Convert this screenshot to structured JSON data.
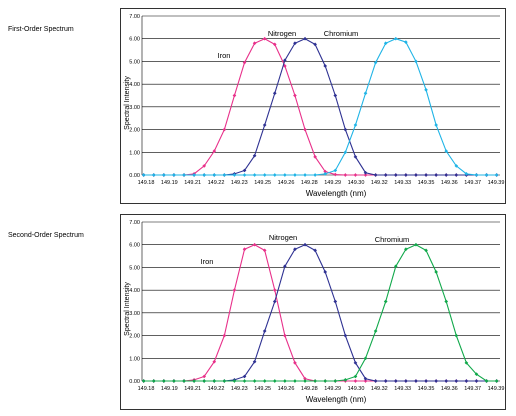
{
  "colors": {
    "iron": "#e8308a",
    "nitrogen": "#2e3192",
    "chromium_first": "#1fb4e6",
    "chromium_second": "#10a84a",
    "grid": "#000000"
  },
  "x_ticks": [
    "149.18",
    "149.19",
    "149.21",
    "149.22",
    "149.23",
    "149.25",
    "149.26",
    "149.28",
    "149.29",
    "149.30",
    "149.32",
    "149.33",
    "149.35",
    "149.36",
    "149.37",
    "149.39"
  ],
  "y_ticks": [
    "0.00",
    "1.00",
    "2.00",
    "3.00",
    "4.00",
    "5.00",
    "6.00",
    "7.00"
  ],
  "chart_data": [
    {
      "type": "line",
      "panel_label": "First-Order Spectrum",
      "xlabel": "Wavelength (nm)",
      "ylabel": "Spectral Intensity",
      "ylim": [
        0,
        7
      ],
      "grid": true,
      "annotations": [
        "Iron",
        "Nitrogen",
        "Chromium"
      ],
      "x": [
        149.181,
        149.187,
        149.193,
        149.199,
        149.205,
        149.211,
        149.217,
        149.223,
        149.229,
        149.235,
        149.241,
        149.247,
        149.253,
        149.259,
        149.265,
        149.271,
        149.277,
        149.283,
        149.289,
        149.295,
        149.301,
        149.307,
        149.313,
        149.319,
        149.325,
        149.331,
        149.337,
        149.343,
        149.349,
        149.355,
        149.361,
        149.367,
        149.373,
        149.379,
        149.385,
        149.391
      ],
      "series": [
        {
          "name": "Iron",
          "color": "iron",
          "values": [
            0,
            0,
            0,
            0,
            0,
            0.05,
            0.4,
            1.05,
            2.0,
            3.5,
            4.95,
            5.8,
            6.0,
            5.75,
            4.8,
            3.5,
            2.0,
            0.8,
            0.15,
            0.02,
            0,
            0,
            0,
            0,
            0,
            0,
            0,
            0,
            0,
            0,
            0,
            0,
            0,
            0,
            0,
            0
          ]
        },
        {
          "name": "Nitrogen",
          "color": "nitrogen",
          "values": [
            0,
            0,
            0,
            0,
            0,
            0,
            0,
            0,
            0,
            0.05,
            0.2,
            0.85,
            2.2,
            3.6,
            5.05,
            5.8,
            6.0,
            5.75,
            4.8,
            3.5,
            2.0,
            0.8,
            0.1,
            0,
            0,
            0,
            0,
            0,
            0,
            0,
            0,
            0,
            0,
            0,
            0,
            0
          ]
        },
        {
          "name": "Chromium",
          "color": "chromium_first",
          "values": [
            0,
            0,
            0,
            0,
            0,
            0,
            0,
            0,
            0,
            0,
            0,
            0,
            0,
            0,
            0,
            0,
            0,
            0,
            0.05,
            0.2,
            1.0,
            2.2,
            3.6,
            4.95,
            5.8,
            6.0,
            5.85,
            5.0,
            3.75,
            2.2,
            1.05,
            0.4,
            0.05,
            0,
            0,
            0
          ]
        }
      ]
    },
    {
      "type": "line",
      "panel_label": "Second-Order Spectrum",
      "xlabel": "Wavelength (nm)",
      "ylabel": "Spectral Intensity",
      "ylim": [
        0,
        7
      ],
      "grid": true,
      "annotations": [
        "Iron",
        "Nitrogen",
        "Chromium"
      ],
      "x": [
        149.181,
        149.187,
        149.193,
        149.199,
        149.205,
        149.211,
        149.217,
        149.223,
        149.229,
        149.235,
        149.241,
        149.247,
        149.253,
        149.259,
        149.265,
        149.271,
        149.277,
        149.283,
        149.289,
        149.295,
        149.301,
        149.307,
        149.313,
        149.319,
        149.325,
        149.331,
        149.337,
        149.343,
        149.349,
        149.355,
        149.361,
        149.367,
        149.373,
        149.379,
        149.385,
        149.391
      ],
      "series": [
        {
          "name": "Iron",
          "color": "iron",
          "values": [
            0,
            0,
            0,
            0,
            0,
            0.05,
            0.2,
            0.85,
            2.0,
            4.0,
            5.8,
            6.0,
            5.75,
            4.0,
            2.0,
            0.8,
            0.1,
            0,
            0,
            0,
            0,
            0,
            0,
            0,
            0,
            0,
            0,
            0,
            0,
            0,
            0,
            0,
            0,
            0,
            0,
            0
          ]
        },
        {
          "name": "Nitrogen",
          "color": "nitrogen",
          "values": [
            0,
            0,
            0,
            0,
            0,
            0,
            0,
            0,
            0,
            0.05,
            0.2,
            0.85,
            2.2,
            3.5,
            5.05,
            5.8,
            6.0,
            5.75,
            4.8,
            3.5,
            2.0,
            0.8,
            0.1,
            0,
            0,
            0,
            0,
            0,
            0,
            0,
            0,
            0,
            0,
            0,
            0,
            0
          ]
        },
        {
          "name": "Chromium",
          "color": "chromium_second",
          "values": [
            0,
            0,
            0,
            0,
            0,
            0,
            0,
            0,
            0,
            0,
            0,
            0,
            0,
            0,
            0,
            0,
            0,
            0,
            0,
            0,
            0.05,
            0.2,
            1.0,
            2.2,
            3.5,
            5.05,
            5.8,
            6.0,
            5.75,
            4.8,
            3.5,
            2.0,
            0.8,
            0.3,
            0,
            0
          ]
        }
      ]
    }
  ]
}
